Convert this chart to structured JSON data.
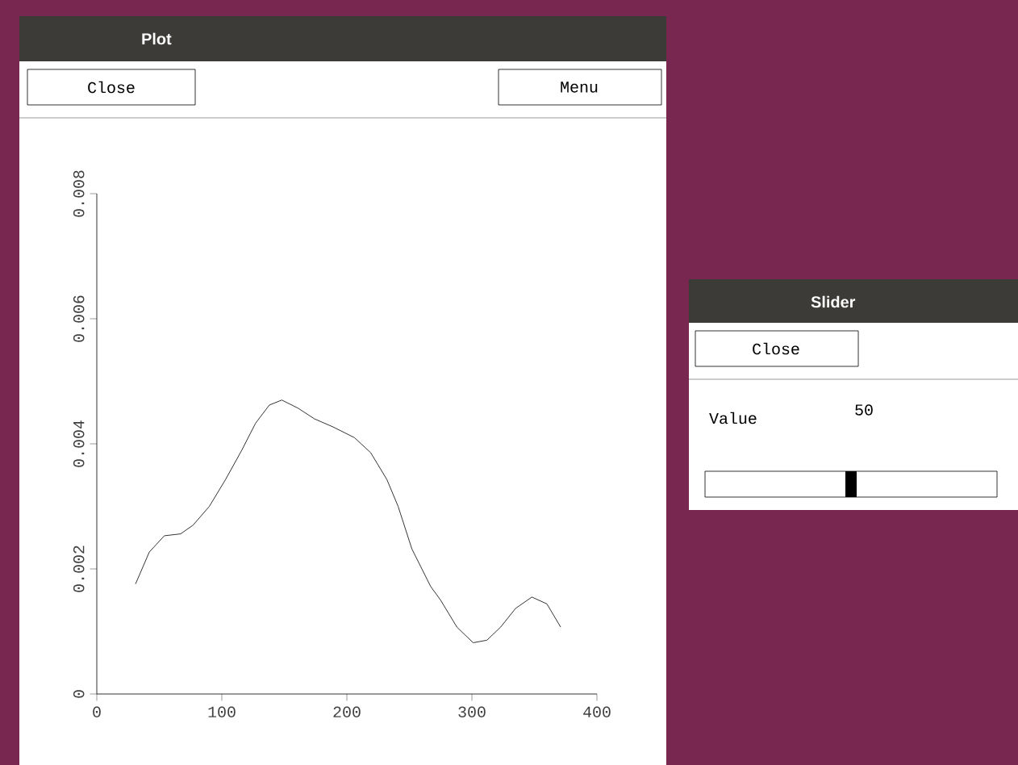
{
  "chart_data": {
    "type": "line",
    "color": "#000000",
    "x": [
      31,
      42,
      54,
      67,
      77,
      90,
      103,
      116,
      127,
      138,
      148,
      161,
      174,
      189,
      206,
      219,
      232,
      241,
      252,
      267,
      275,
      288,
      301,
      312,
      323,
      335,
      348,
      360,
      371
    ],
    "values": [
      0.00176,
      0.00227,
      0.00253,
      0.00256,
      0.0027,
      0.003,
      0.00343,
      0.0039,
      0.00433,
      0.00462,
      0.0047,
      0.00457,
      0.0044,
      0.00427,
      0.0041,
      0.00386,
      0.00343,
      0.003,
      0.00232,
      0.00172,
      0.0015,
      0.00107,
      0.00082,
      0.00086,
      0.00107,
      0.00137,
      0.00155,
      0.00144,
      0.00107
    ],
    "xlim": [
      0,
      400
    ],
    "ylim": [
      0,
      0.008
    ],
    "xticks": [
      0,
      100,
      200,
      300,
      400
    ],
    "yticks": [
      0,
      0.002,
      0.004,
      0.006,
      0.008
    ],
    "grid": false,
    "marker": "none",
    "line_style": "solid",
    "annotations": [
      "Plot",
      "Close",
      "Menu",
      "Slider",
      "Close",
      "Value",
      "50"
    ]
  }
}
